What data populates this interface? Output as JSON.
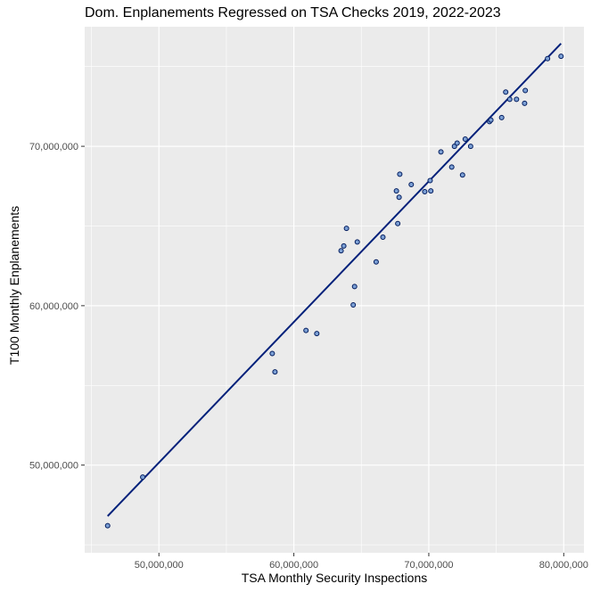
{
  "chart_data": {
    "type": "scatter",
    "title": "Dom. Enplanements Regressed on TSA Checks 2019, 2022-2023",
    "xlabel": "TSA Monthly Security Inspections",
    "ylabel": "T100 Monthly Enplanements",
    "xlim": [
      44500000,
      81500000
    ],
    "ylim": [
      44500000,
      77500000
    ],
    "x_ticks": [
      50000000,
      60000000,
      70000000,
      80000000
    ],
    "x_tick_labels": [
      "50,000,000",
      "60,000,000",
      "70,000,000",
      "80,000,000"
    ],
    "y_ticks": [
      50000000,
      60000000,
      70000000
    ],
    "y_tick_labels": [
      "50,000,000",
      "60,000,000",
      "70,000,000"
    ],
    "grid": true,
    "colors": {
      "panel": "#EBEBEB",
      "grid": "#FFFFFF",
      "point_fill": "#7B9FD4",
      "point_stroke": "#001A5C",
      "line": "#00207A"
    },
    "points": [
      {
        "x": 46200000,
        "y": 46200000
      },
      {
        "x": 48800000,
        "y": 49250000
      },
      {
        "x": 58400000,
        "y": 57000000
      },
      {
        "x": 58600000,
        "y": 55850000
      },
      {
        "x": 60900000,
        "y": 58450000
      },
      {
        "x": 61700000,
        "y": 58250000
      },
      {
        "x": 63500000,
        "y": 63450000
      },
      {
        "x": 63700000,
        "y": 63750000
      },
      {
        "x": 63900000,
        "y": 64850000
      },
      {
        "x": 64400000,
        "y": 60050000
      },
      {
        "x": 64500000,
        "y": 61200000
      },
      {
        "x": 64700000,
        "y": 64000000
      },
      {
        "x": 66100000,
        "y": 62750000
      },
      {
        "x": 66600000,
        "y": 64300000
      },
      {
        "x": 67600000,
        "y": 67200000
      },
      {
        "x": 67700000,
        "y": 65150000
      },
      {
        "x": 67800000,
        "y": 66800000
      },
      {
        "x": 67850000,
        "y": 68250000
      },
      {
        "x": 68700000,
        "y": 67600000
      },
      {
        "x": 69700000,
        "y": 67150000
      },
      {
        "x": 70100000,
        "y": 67850000
      },
      {
        "x": 70150000,
        "y": 67200000
      },
      {
        "x": 70900000,
        "y": 69650000
      },
      {
        "x": 71700000,
        "y": 68700000
      },
      {
        "x": 71900000,
        "y": 70000000
      },
      {
        "x": 72100000,
        "y": 70200000
      },
      {
        "x": 72500000,
        "y": 68200000
      },
      {
        "x": 72700000,
        "y": 70450000
      },
      {
        "x": 73100000,
        "y": 70000000
      },
      {
        "x": 74500000,
        "y": 71550000
      },
      {
        "x": 74600000,
        "y": 71650000
      },
      {
        "x": 75400000,
        "y": 71800000
      },
      {
        "x": 75700000,
        "y": 73400000
      },
      {
        "x": 76000000,
        "y": 72950000
      },
      {
        "x": 76500000,
        "y": 72950000
      },
      {
        "x": 77100000,
        "y": 72700000
      },
      {
        "x": 77150000,
        "y": 73500000
      },
      {
        "x": 78800000,
        "y": 75500000
      },
      {
        "x": 79800000,
        "y": 75650000
      }
    ],
    "regression_line": {
      "x": [
        46200000,
        79800000
      ],
      "y": [
        46800000,
        76450000
      ]
    }
  }
}
